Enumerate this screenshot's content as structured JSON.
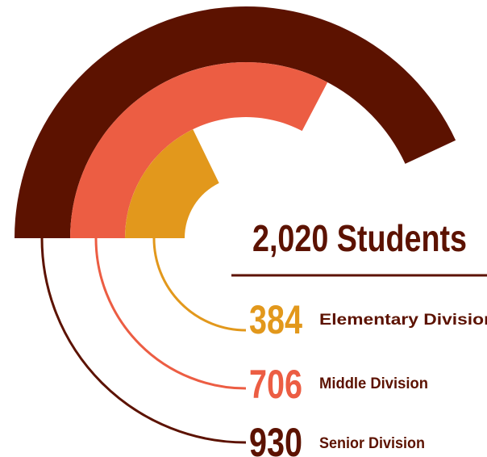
{
  "colors": {
    "senior": "#5c1200",
    "middle": "#ec5d43",
    "elementary": "#e2981c",
    "background": "#ffffff"
  },
  "chart_data": {
    "type": "radial-bar",
    "title": "2,020 Students",
    "series": [
      {
        "name": "Elementary Division",
        "value": 384,
        "label": "384",
        "color": "#e2981c"
      },
      {
        "name": "Middle Division",
        "value": 706,
        "label": "706",
        "color": "#ec5d43"
      },
      {
        "name": "Senior Division",
        "value": 930,
        "label": "930",
        "color": "#5c1200"
      }
    ]
  }
}
